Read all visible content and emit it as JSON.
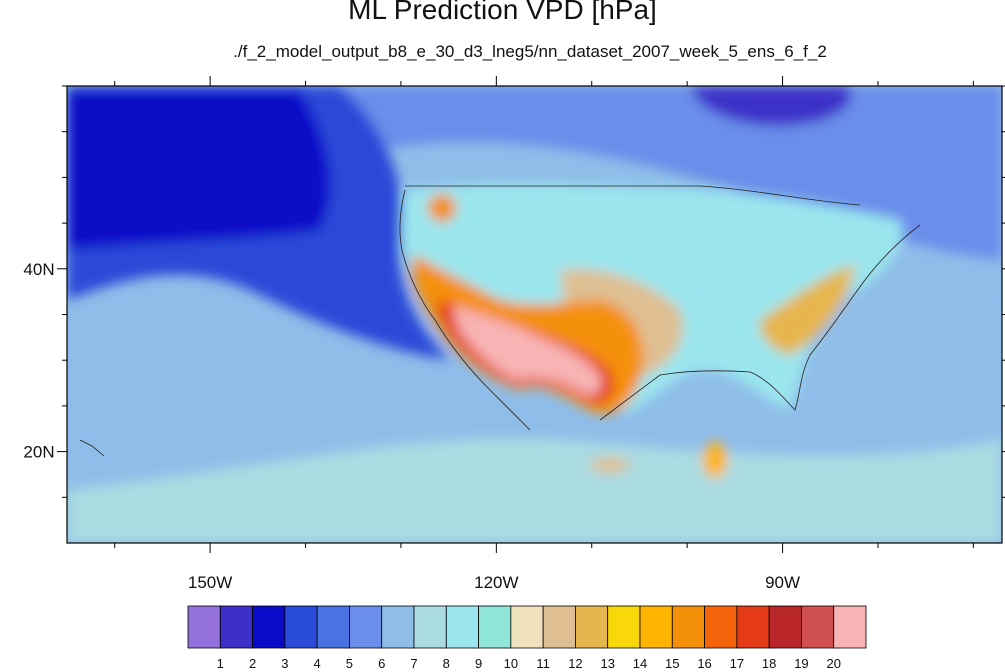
{
  "chart_data": {
    "type": "heatmap",
    "title": "ML Prediction VPD [hPa]",
    "subtitle": "./f_2_model_output_b8_e_30_d3_lneg5/nn_dataset_2007_week_5_ens_6_f_2",
    "units": "hPa",
    "region": {
      "lon_range": [
        -165,
        -67
      ],
      "lat_range": [
        10,
        60
      ]
    },
    "x_ticks": [
      {
        "value": -150,
        "label": "150W"
      },
      {
        "value": -120,
        "label": "120W"
      },
      {
        "value": -90,
        "label": "90W"
      }
    ],
    "y_ticks": [
      {
        "value": 20,
        "label": "20N"
      },
      {
        "value": 40,
        "label": "40N"
      }
    ],
    "colorbar": {
      "levels": [
        1,
        2,
        3,
        4,
        5,
        6,
        7,
        8,
        9,
        10,
        11,
        12,
        13,
        14,
        15,
        16,
        17,
        18,
        19,
        20
      ],
      "colors": [
        "#9370db",
        "#3c30c8",
        "#0a0ac8",
        "#2a4ad8",
        "#4a72e2",
        "#6a8eea",
        "#8fbde9",
        "#aadce2",
        "#9be6ee",
        "#90e6d8",
        "#f0e2bc",
        "#dfbf92",
        "#e6b64e",
        "#f8d80a",
        "#ffb400",
        "#f5900a",
        "#f5640a",
        "#e43a18",
        "#b8262a",
        "#d05050",
        "#f8b4b4"
      ]
    },
    "background_color": "#8fbde9"
  }
}
